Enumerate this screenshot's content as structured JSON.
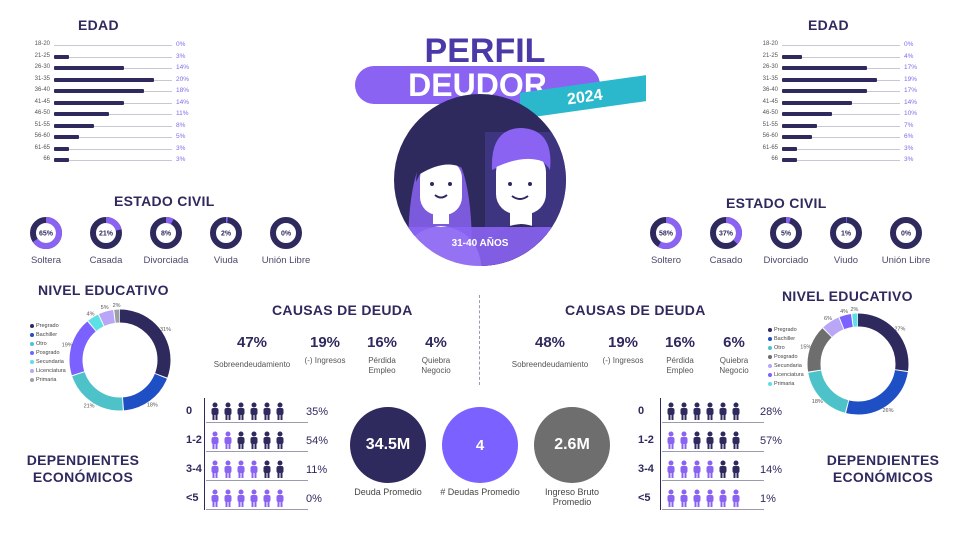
{
  "header": {
    "title_top": "PERFIL",
    "title_main": "DEUDOR",
    "year": "2024",
    "age_range": "31-40 AÑOS"
  },
  "colors": {
    "navy": "#2e2a5e",
    "purple": "#8a63f2",
    "violet": "#7b61ff",
    "teal": "#4dc3c9",
    "gray": "#6e6e6e",
    "blue": "#1f4fc4",
    "light_purple": "#b9a6f7"
  },
  "sections": {
    "age": "EDAD",
    "civil": "ESTADO CIVIL",
    "education": "NIVEL EDUCATIVO",
    "causes": "CAUSAS DE DEUDA",
    "dependents": "DEPENDIENTES ECONÓMICOS"
  },
  "age_categories": [
    "18-20",
    "21-25",
    "26-30",
    "31-35",
    "36-40",
    "41-45",
    "46-50",
    "51-55",
    "56-60",
    "61-65",
    "66"
  ],
  "civil_labels_female": [
    "Soltera",
    "Casada",
    "Divorciada",
    "Viuda",
    "Unión Libre"
  ],
  "civil_labels_male": [
    "Soltero",
    "Casado",
    "Divorciado",
    "Viudo",
    "Unión Libre"
  ],
  "education_legend": [
    "Pregrado",
    "Bachiller",
    "Otro",
    "Posgrado",
    "Secundaria",
    "Licenciatura",
    "Primaria"
  ],
  "cause_labels": [
    "Sobreendeudamiento",
    "(-) Ingresos",
    "Pérdida Empleo",
    "Quiebra Negocio"
  ],
  "dependent_categories": [
    "0",
    "1-2",
    "3-4",
    "<5"
  ],
  "center_circles": [
    {
      "value": "34.5M",
      "label": "Deuda Promedio",
      "color": "#2e2a5e"
    },
    {
      "value": "4",
      "label": "# Deudas Promedio",
      "color": "#7b61ff"
    },
    {
      "value": "2.6M",
      "label": "Ingreso Bruto Promedio",
      "color": "#6e6e6e"
    }
  ],
  "chart_data": [
    {
      "type": "bar",
      "title": "EDAD",
      "group": "female",
      "categories": [
        "18-20",
        "21-25",
        "26-30",
        "31-35",
        "36-40",
        "41-45",
        "46-50",
        "51-55",
        "56-60",
        "61-65",
        "66"
      ],
      "values": [
        0,
        3,
        14,
        20,
        18,
        14,
        11,
        8,
        5,
        3,
        3
      ],
      "labels": [
        "0%",
        "3%",
        "14%",
        "20%",
        "18%",
        "14%",
        "11%",
        "8%",
        "5%",
        "3%",
        "3%"
      ]
    },
    {
      "type": "bar",
      "title": "EDAD",
      "group": "male",
      "categories": [
        "18-20",
        "21-25",
        "26-30",
        "31-35",
        "36-40",
        "41-45",
        "46-50",
        "51-55",
        "56-60",
        "61-65",
        "66"
      ],
      "values": [
        0,
        4,
        17,
        19,
        17,
        14,
        10,
        7,
        6,
        3,
        3
      ],
      "labels": [
        "0%",
        "4%",
        "17%",
        "19%",
        "17%",
        "14%",
        "10%",
        "7%",
        "6%",
        "3%",
        "3%"
      ]
    },
    {
      "type": "pie",
      "title": "ESTADO CIVIL",
      "group": "female",
      "categories": [
        "Soltera",
        "Casada",
        "Divorciada",
        "Viuda",
        "Unión Libre"
      ],
      "values": [
        65,
        21,
        8,
        2,
        0
      ],
      "labels": [
        "65%",
        "21%",
        "8%",
        "2%",
        "0%"
      ]
    },
    {
      "type": "pie",
      "title": "ESTADO CIVIL",
      "group": "male",
      "categories": [
        "Soltero",
        "Casado",
        "Divorciado",
        "Viudo",
        "Unión Libre"
      ],
      "values": [
        58,
        37,
        5,
        1,
        0
      ],
      "labels": [
        "58%",
        "37%",
        "5%",
        "1%",
        "0%"
      ]
    },
    {
      "type": "pie",
      "title": "NIVEL EDUCATIVO",
      "group": "female",
      "categories": [
        "Pregrado",
        "Bachiller",
        "Otro",
        "Posgrado",
        "Secundaria",
        "Licenciatura",
        "Primaria"
      ],
      "values": [
        31,
        18,
        21,
        19,
        4,
        5,
        2
      ],
      "labels": [
        "31%",
        "18%",
        "21%",
        "19%",
        "4%",
        "5%",
        "2%"
      ],
      "colors": [
        "#2e2a5e",
        "#1f4fc4",
        "#4dc3c9",
        "#7b61ff",
        "#5ce0e6",
        "#b9a6f7",
        "#9aa0a6"
      ]
    },
    {
      "type": "pie",
      "title": "NIVEL EDUCATIVO",
      "group": "male",
      "categories": [
        "Pregrado",
        "Bachiller",
        "Otro",
        "Posgrado",
        "Secundaria",
        "Licenciatura",
        "Primaria"
      ],
      "values": [
        27,
        26,
        18,
        15,
        6,
        4,
        2
      ],
      "labels": [
        "27%",
        "26%",
        "18%",
        "15%",
        "6%",
        "4%",
        "2%"
      ],
      "colors": [
        "#2e2a5e",
        "#1f4fc4",
        "#4dc3c9",
        "#6e6e6e",
        "#b9a6f7",
        "#7b61ff",
        "#5ce0e6"
      ]
    },
    {
      "type": "bar",
      "title": "CAUSAS DE DEUDA",
      "group": "female",
      "categories": [
        "Sobreendeudamiento",
        "(-) Ingresos",
        "Pérdida Empleo",
        "Quiebra Negocio"
      ],
      "values": [
        47,
        19,
        16,
        4
      ],
      "labels": [
        "47%",
        "19%",
        "16%",
        "4%"
      ]
    },
    {
      "type": "bar",
      "title": "CAUSAS DE DEUDA",
      "group": "male",
      "categories": [
        "Sobreendeudamiento",
        "(-) Ingresos",
        "Pérdida Empleo",
        "Quiebra Negocio"
      ],
      "values": [
        48,
        19,
        16,
        6
      ],
      "labels": [
        "48%",
        "19%",
        "16%",
        "6%"
      ]
    },
    {
      "type": "bar",
      "title": "DEPENDIENTES ECONÓMICOS",
      "group": "female",
      "categories": [
        "0",
        "1-2",
        "3-4",
        "<5"
      ],
      "values": [
        35,
        54,
        11,
        0
      ],
      "labels": [
        "35%",
        "54%",
        "11%",
        "0%"
      ]
    },
    {
      "type": "bar",
      "title": "DEPENDIENTES ECONÓMICOS",
      "group": "male",
      "categories": [
        "0",
        "1-2",
        "3-4",
        "<5"
      ],
      "values": [
        28,
        57,
        14,
        1
      ],
      "labels": [
        "28%",
        "57%",
        "14%",
        "1%"
      ]
    }
  ]
}
